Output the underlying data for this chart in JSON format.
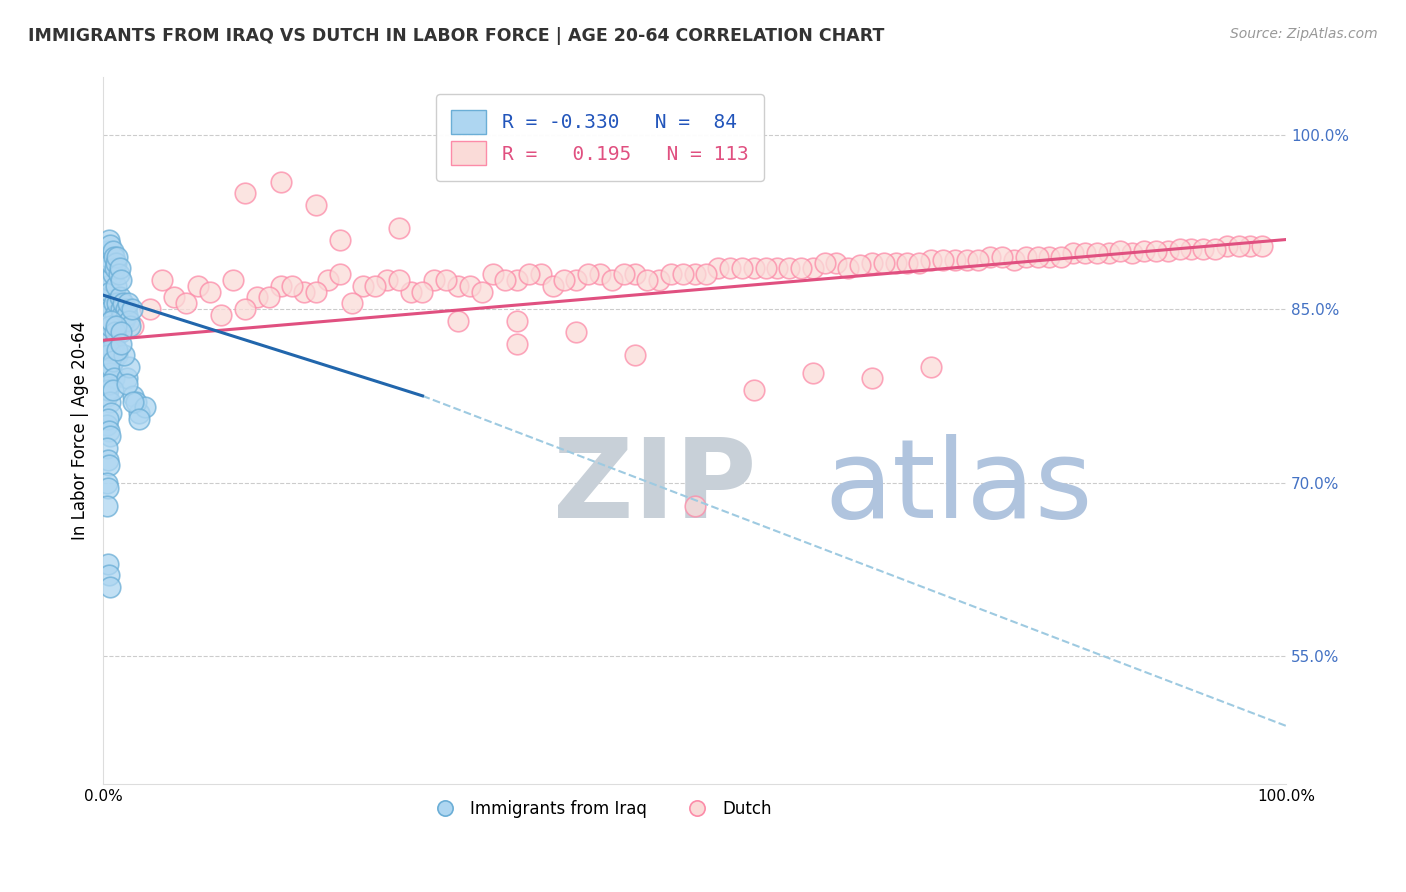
{
  "title": "IMMIGRANTS FROM IRAQ VS DUTCH IN LABOR FORCE | AGE 20-64 CORRELATION CHART",
  "source_text": "Source: ZipAtlas.com",
  "ylabel": "In Labor Force | Age 20-64",
  "xlim": [
    0.0,
    1.0
  ],
  "ylim": [
    0.44,
    1.05
  ],
  "right_ytick_labels": [
    "55.0%",
    "70.0%",
    "85.0%",
    "100.0%"
  ],
  "right_ytick_values": [
    0.55,
    0.7,
    0.85,
    1.0
  ],
  "legend_entries": [
    {
      "label_r": "R = ",
      "label_rv": "-0.330",
      "label_n": "  N = ",
      "label_nv": " 84",
      "color": "#7EB3E8"
    },
    {
      "label_r": "R =  ",
      "label_rv": "0.195",
      "label_n": "  N = ",
      "label_nv": "113",
      "color": "#F5A0B0"
    }
  ],
  "legend_labels_bottom": [
    "Immigrants from Iraq",
    "Dutch"
  ],
  "blue_color": "#6BAED6",
  "pink_color": "#FC8BA8",
  "blue_fill_color": "#AED6F1",
  "pink_fill_color": "#FADBD8",
  "blue_line_color": "#2166AC",
  "pink_line_color": "#E05080",
  "dashed_line_color": "#9ECAE1",
  "watermark_zip_color": "#C8D0D8",
  "watermark_atlas_color": "#B0C4DE",
  "background_color": "#FFFFFF",
  "grid_color": "#CCCCCC",
  "blue_scatter_x": [
    0.002,
    0.003,
    0.004,
    0.005,
    0.006,
    0.007,
    0.008,
    0.009,
    0.01,
    0.011,
    0.012,
    0.013,
    0.014,
    0.015,
    0.016,
    0.017,
    0.018,
    0.019,
    0.02,
    0.021,
    0.022,
    0.023,
    0.024,
    0.003,
    0.004,
    0.005,
    0.006,
    0.007,
    0.008,
    0.009,
    0.01,
    0.011,
    0.012,
    0.013,
    0.014,
    0.015,
    0.004,
    0.005,
    0.006,
    0.007,
    0.008,
    0.009,
    0.01,
    0.011,
    0.012,
    0.003,
    0.004,
    0.005,
    0.006,
    0.007,
    0.008,
    0.009,
    0.003,
    0.004,
    0.005,
    0.006,
    0.007,
    0.003,
    0.004,
    0.005,
    0.006,
    0.003,
    0.004,
    0.005,
    0.003,
    0.004,
    0.003,
    0.02,
    0.025,
    0.03,
    0.022,
    0.028,
    0.015,
    0.018,
    0.035,
    0.008,
    0.012,
    0.02,
    0.025,
    0.015,
    0.03,
    0.004,
    0.005,
    0.006
  ],
  "blue_scatter_y": [
    0.855,
    0.87,
    0.86,
    0.875,
    0.865,
    0.85,
    0.88,
    0.855,
    0.845,
    0.87,
    0.855,
    0.84,
    0.86,
    0.85,
    0.845,
    0.855,
    0.84,
    0.85,
    0.845,
    0.855,
    0.84,
    0.835,
    0.85,
    0.9,
    0.895,
    0.91,
    0.905,
    0.89,
    0.9,
    0.895,
    0.885,
    0.89,
    0.895,
    0.88,
    0.885,
    0.875,
    0.82,
    0.825,
    0.835,
    0.84,
    0.815,
    0.82,
    0.83,
    0.835,
    0.81,
    0.8,
    0.81,
    0.815,
    0.795,
    0.8,
    0.805,
    0.79,
    0.775,
    0.78,
    0.785,
    0.77,
    0.76,
    0.75,
    0.755,
    0.745,
    0.74,
    0.73,
    0.72,
    0.715,
    0.7,
    0.695,
    0.68,
    0.79,
    0.775,
    0.76,
    0.8,
    0.77,
    0.83,
    0.81,
    0.765,
    0.78,
    0.815,
    0.785,
    0.77,
    0.82,
    0.755,
    0.63,
    0.62,
    0.61
  ],
  "pink_scatter_x": [
    0.005,
    0.015,
    0.025,
    0.04,
    0.06,
    0.08,
    0.1,
    0.05,
    0.07,
    0.09,
    0.11,
    0.13,
    0.15,
    0.17,
    0.19,
    0.12,
    0.14,
    0.16,
    0.18,
    0.2,
    0.22,
    0.24,
    0.26,
    0.28,
    0.3,
    0.21,
    0.23,
    0.25,
    0.27,
    0.29,
    0.31,
    0.33,
    0.35,
    0.37,
    0.32,
    0.34,
    0.36,
    0.38,
    0.4,
    0.42,
    0.39,
    0.41,
    0.43,
    0.45,
    0.47,
    0.44,
    0.46,
    0.48,
    0.5,
    0.52,
    0.49,
    0.51,
    0.53,
    0.55,
    0.57,
    0.54,
    0.56,
    0.58,
    0.6,
    0.62,
    0.59,
    0.61,
    0.63,
    0.65,
    0.67,
    0.64,
    0.66,
    0.68,
    0.7,
    0.72,
    0.69,
    0.71,
    0.73,
    0.75,
    0.77,
    0.74,
    0.76,
    0.78,
    0.8,
    0.82,
    0.79,
    0.81,
    0.83,
    0.85,
    0.87,
    0.84,
    0.86,
    0.88,
    0.9,
    0.92,
    0.89,
    0.91,
    0.93,
    0.95,
    0.97,
    0.94,
    0.96,
    0.98,
    0.35,
    0.45,
    0.6,
    0.7,
    0.5,
    0.55,
    0.3,
    0.4,
    0.65,
    0.2,
    0.25,
    0.15,
    0.35,
    0.12,
    0.18
  ],
  "pink_scatter_y": [
    0.84,
    0.855,
    0.835,
    0.85,
    0.86,
    0.87,
    0.845,
    0.875,
    0.855,
    0.865,
    0.875,
    0.86,
    0.87,
    0.865,
    0.875,
    0.85,
    0.86,
    0.87,
    0.865,
    0.88,
    0.87,
    0.875,
    0.865,
    0.875,
    0.87,
    0.855,
    0.87,
    0.875,
    0.865,
    0.875,
    0.87,
    0.88,
    0.875,
    0.88,
    0.865,
    0.875,
    0.88,
    0.87,
    0.875,
    0.88,
    0.875,
    0.88,
    0.875,
    0.88,
    0.875,
    0.88,
    0.875,
    0.88,
    0.88,
    0.885,
    0.88,
    0.88,
    0.885,
    0.885,
    0.885,
    0.885,
    0.885,
    0.885,
    0.885,
    0.89,
    0.885,
    0.89,
    0.885,
    0.89,
    0.89,
    0.888,
    0.89,
    0.89,
    0.892,
    0.892,
    0.89,
    0.892,
    0.892,
    0.895,
    0.892,
    0.892,
    0.895,
    0.895,
    0.895,
    0.898,
    0.895,
    0.895,
    0.898,
    0.898,
    0.898,
    0.898,
    0.9,
    0.9,
    0.9,
    0.902,
    0.9,
    0.902,
    0.902,
    0.904,
    0.904,
    0.902,
    0.904,
    0.904,
    0.82,
    0.81,
    0.795,
    0.8,
    0.68,
    0.78,
    0.84,
    0.83,
    0.79,
    0.91,
    0.92,
    0.96,
    0.84,
    0.95,
    0.94
  ],
  "blue_trend_x": [
    0.0,
    0.27
  ],
  "blue_trend_y": [
    0.862,
    0.775
  ],
  "pink_trend_x": [
    0.0,
    1.0
  ],
  "pink_trend_y": [
    0.823,
    0.91
  ],
  "dashed_trend_x": [
    0.27,
    1.0
  ],
  "dashed_trend_y": [
    0.775,
    0.49
  ]
}
